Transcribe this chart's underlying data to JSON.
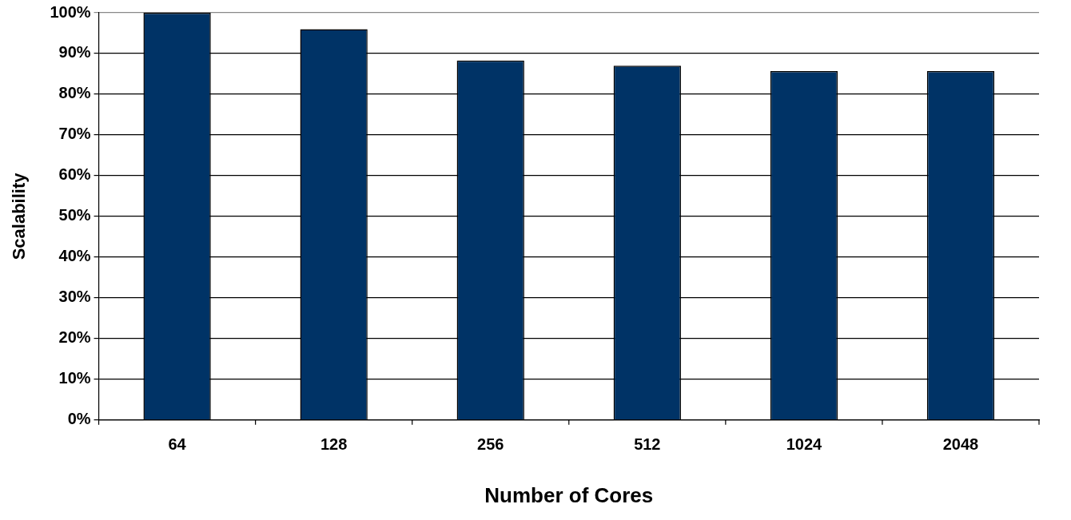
{
  "chart_data": {
    "type": "bar",
    "xlabel": "Number of Cores",
    "ylabel": "Scalability",
    "categories": [
      "64",
      "128",
      "256",
      "512",
      "1024",
      "2048"
    ],
    "values": [
      100,
      96,
      88.3,
      87,
      85.7,
      85.7
    ],
    "color": "#003366",
    "ylim": [
      0,
      100
    ],
    "yticks": [
      {
        "value": 0,
        "label": "0%"
      },
      {
        "value": 10,
        "label": "10%"
      },
      {
        "value": 20,
        "label": "20%"
      },
      {
        "value": 30,
        "label": "30%"
      },
      {
        "value": 40,
        "label": "40%"
      },
      {
        "value": 50,
        "label": "50%"
      },
      {
        "value": 60,
        "label": "60%"
      },
      {
        "value": 70,
        "label": "70%"
      },
      {
        "value": 80,
        "label": "80%"
      },
      {
        "value": 90,
        "label": "90%"
      },
      {
        "value": 100,
        "label": "100%"
      }
    ],
    "grid": "y",
    "legend": false
  }
}
